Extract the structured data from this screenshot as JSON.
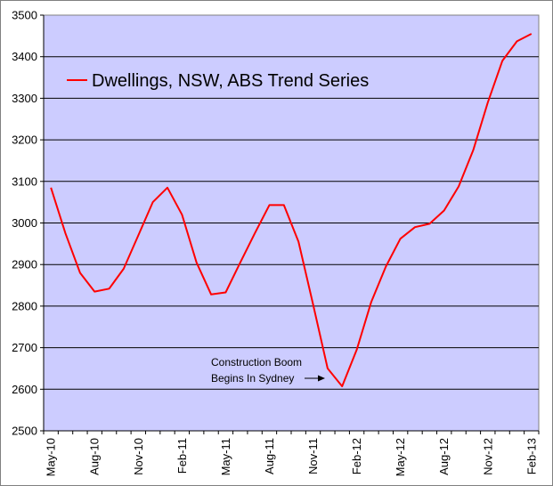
{
  "chart_data": {
    "type": "line",
    "legend": {
      "label": "Dwellings, NSW, ABS Trend Series",
      "position": "top-left"
    },
    "colors": {
      "series": "#ff0000",
      "plot_background": "#ccccff",
      "gridline": "#000000"
    },
    "ylim": [
      2500,
      3500
    ],
    "y_ticks": [
      "2500",
      "2600",
      "2700",
      "2800",
      "2900",
      "3000",
      "3100",
      "3200",
      "3300",
      "3400",
      "3500"
    ],
    "x_tick_labels": [
      "May-10",
      "Aug-10",
      "Nov-10",
      "Feb-11",
      "May-11",
      "Aug-11",
      "Nov-11",
      "Feb-12",
      "May-12",
      "Aug-12",
      "Nov-12",
      "Feb-13"
    ],
    "grid": "horizontal",
    "series": [
      {
        "name": "Dwellings, NSW, ABS Trend Series",
        "x": [
          "May-10",
          "Jun-10",
          "Jul-10",
          "Aug-10",
          "Sep-10",
          "Oct-10",
          "Nov-10",
          "Dec-10",
          "Jan-11",
          "Feb-11",
          "Mar-11",
          "Apr-11",
          "May-11",
          "Jun-11",
          "Jul-11",
          "Aug-11",
          "Sep-11",
          "Oct-11",
          "Nov-11",
          "Dec-11",
          "Jan-12",
          "Feb-12",
          "Mar-12",
          "Apr-12",
          "May-12",
          "Jun-12",
          "Jul-12",
          "Aug-12",
          "Sep-12",
          "Oct-12",
          "Nov-12",
          "Dec-12",
          "Jan-13",
          "Feb-13"
        ],
        "values": [
          3085,
          2975,
          2880,
          2835,
          2842,
          2890,
          2970,
          3050,
          3085,
          3020,
          2905,
          2828,
          2833,
          2905,
          2975,
          3043,
          3043,
          2955,
          2805,
          2650,
          2607,
          2695,
          2810,
          2895,
          2962,
          2990,
          2998,
          3030,
          3088,
          3175,
          3290,
          3390,
          3437,
          3455
        ]
      }
    ],
    "annotations": [
      {
        "lines": [
          "Construction Boom",
          "Begins In Sydney"
        ],
        "points_to": "Jan-12"
      }
    ]
  }
}
